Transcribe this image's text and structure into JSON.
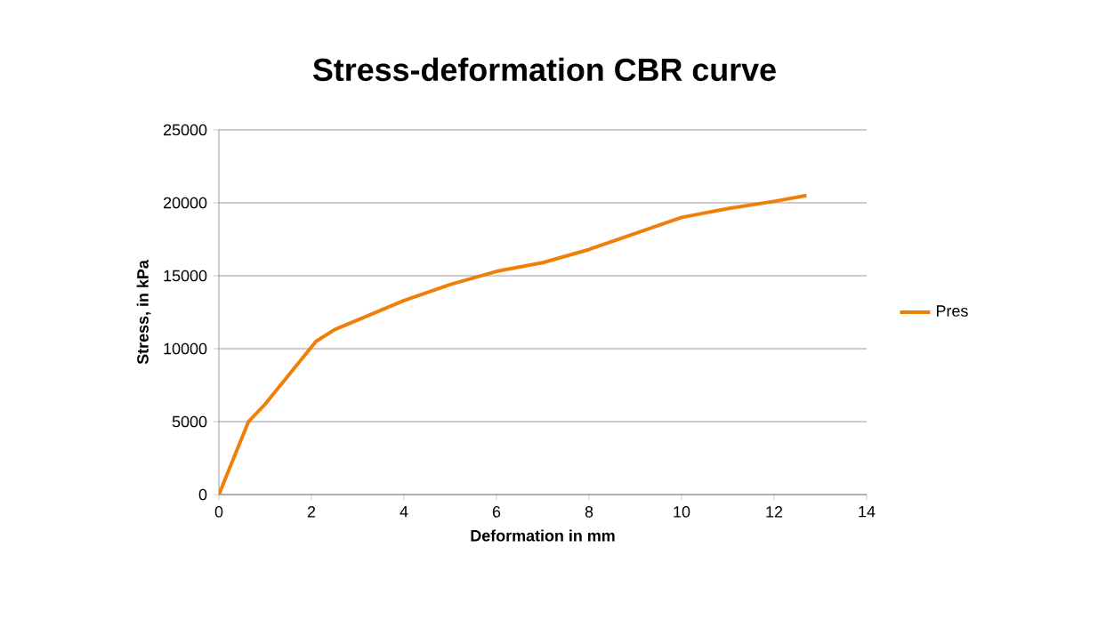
{
  "chart_data": {
    "type": "line",
    "title": "Stress-deformation CBR curve",
    "xlabel": "Deformation in mm",
    "ylabel": "Stress, in kPa",
    "x": [
      0,
      0.64,
      1.0,
      2.1,
      2.5,
      4.0,
      5.0,
      6.0,
      7.0,
      8.0,
      9.0,
      10.0,
      11.0,
      12.0,
      12.7
    ],
    "series": [
      {
        "name": "Pres",
        "color": "#f07f09",
        "values": [
          0,
          5000,
          6200,
          10500,
          11300,
          13300,
          14400,
          15300,
          15900,
          16800,
          17900,
          19000,
          19600,
          20100,
          20500
        ]
      }
    ],
    "xlim": [
      0,
      14
    ],
    "xticks": [
      0,
      2,
      4,
      6,
      8,
      10,
      12,
      14
    ],
    "ylim": [
      0,
      25000
    ],
    "yticks": [
      0,
      5000,
      10000,
      15000,
      20000,
      25000
    ],
    "grid": "y",
    "legend": "right",
    "marker": "none",
    "line_style": "solid"
  }
}
